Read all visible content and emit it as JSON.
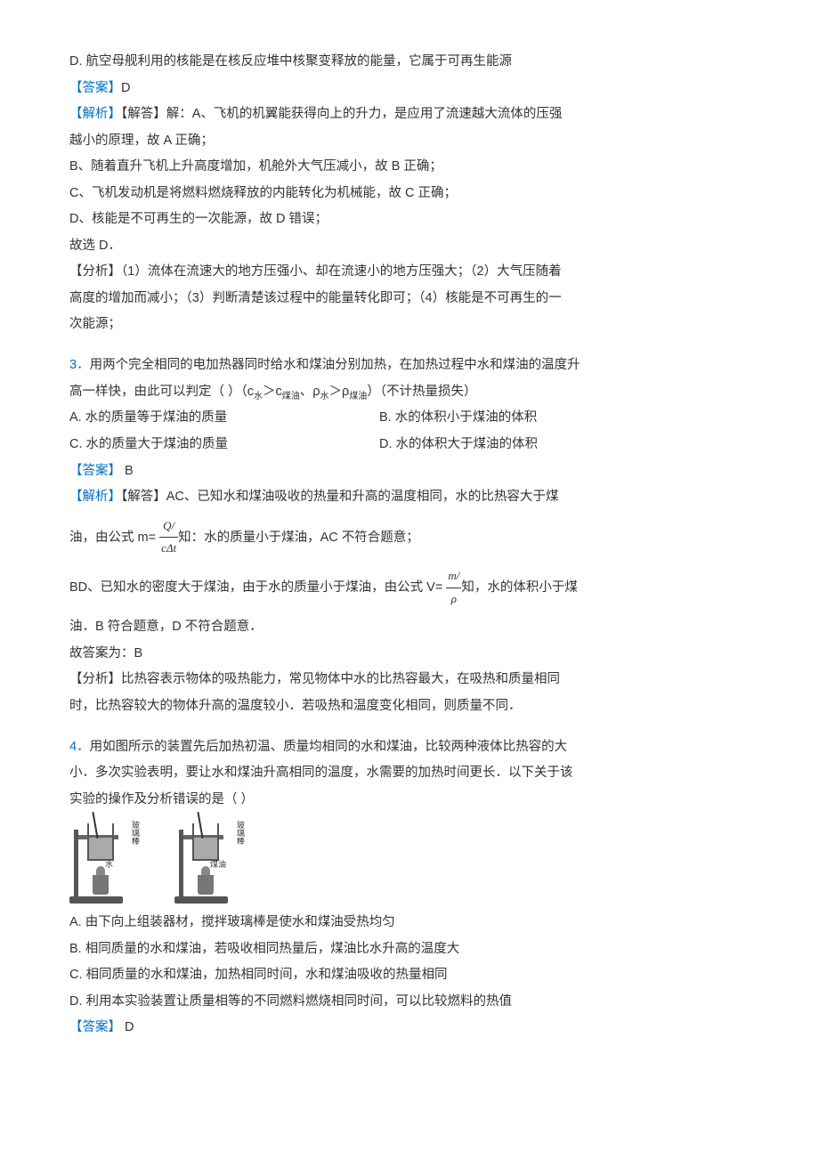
{
  "q2": {
    "optD": "D. 航空母舰利用的核能是在核反应堆中核聚变释放的能量，它属于可再生能源",
    "ansLabel": "【答案】",
    "ansVal": "D",
    "anaLabel": "【解析】",
    "anaLine1": "【解答】解：A、飞机的机翼能获得向上的升力，是应用了流速越大流体的压强",
    "anaLine1b": "越小的原理，故 A 正确；",
    "anaLine2": "B、随着直升飞机上升高度增加，机舱外大气压减小，故 B 正确；",
    "anaLine3": "C、飞机发动机是将燃料燃烧释放的内能转化为机械能，故 C 正确；",
    "anaLine4": "D、核能是不可再生的一次能源，故 D 错误；",
    "anaLine5": "故选 D．",
    "fenLabel": "【分析】（1）流体在流速大的地方压强小、却在流速小的地方压强大；（2）大气压随着",
    "fenLine2": "高度的增加而减小；（3）判断清楚该过程中的能量转化即可；（4）核能是不可再生的一",
    "fenLine3": "次能源；"
  },
  "q3": {
    "num": "3．",
    "stem1": "用两个完全相同的电加热器同时给水和煤油分别加热，在加热过程中水和煤油的温度升",
    "stem2a": "高一样快，由此可以判定（  ）（c",
    "stem2b": "＞c",
    "stem2c": "、ρ",
    "stem2d": "＞ρ",
    "stem2e": "）（不计热量损失）",
    "subWater": "水",
    "subOil": "煤油",
    "optA": "A. 水的质量等于煤油的质量",
    "optB": "B. 水的体积小于煤油的体积",
    "optC": "C. 水的质量大于煤油的质量",
    "optD": "D. 水的体积大于煤油的体积",
    "ansLabel": "【答案】",
    "ansVal": " B",
    "anaLabel": "【解析】",
    "anaLine1": "【解答】AC、已知水和煤油吸收的热量和升高的温度相同，水的比热容大于煤",
    "anaPre": "油，由公式 m= ",
    "formNum": "Q/",
    "formDen": "cΔt",
    "anaPost": "知：水的质量小于煤油，AC 不符合题意；",
    "anaLine3a": "BD、已知水的密度大于煤油，由于水的质量小于煤油，由公式 V= ",
    "formNum2": "m/",
    "formDen2": "ρ",
    "anaLine3b": "知，水的体积小于煤",
    "anaLine3c": "油．B 符合题意，D 不符合题意．",
    "anaLine4": "故答案为：B",
    "fenLine1": "【分析】比热容表示物体的吸热能力，常见物体中水的比热容最大，在吸热和质量相同",
    "fenLine2": "时，比热容较大的物体升高的温度较小．若吸热和温度变化相同，则质量不同．"
  },
  "q4": {
    "num": "4．",
    "stem1": "用如图所示的装置先后加热初温、质量均相同的水和煤油，比较两种液体比热容的大",
    "stem2": "小．多次实验表明，要让水和煤油升高相同的温度，水需要的加热时间更长．以下关于该",
    "stem3": "实验的操作及分析错误的是（  ）",
    "imgLabel1": "玻璃棒",
    "imgLabel2": "水",
    "imgLabel3": "玻璃棒",
    "imgLabel4": "煤油",
    "optA": "A. 由下向上组装器材，搅拌玻璃棒是使水和煤油受热均匀",
    "optB": "B. 相同质量的水和煤油，若吸收相同热量后，煤油比水升高的温度大",
    "optC": "C. 相同质量的水和煤油，加热相同时间，水和煤油吸收的热量相同",
    "optD": "D. 利用本实验装置让质量相等的不同燃料燃烧相同时间，可以比较燃料的热值",
    "ansLabel": "【答案】",
    "ansVal": " D"
  }
}
